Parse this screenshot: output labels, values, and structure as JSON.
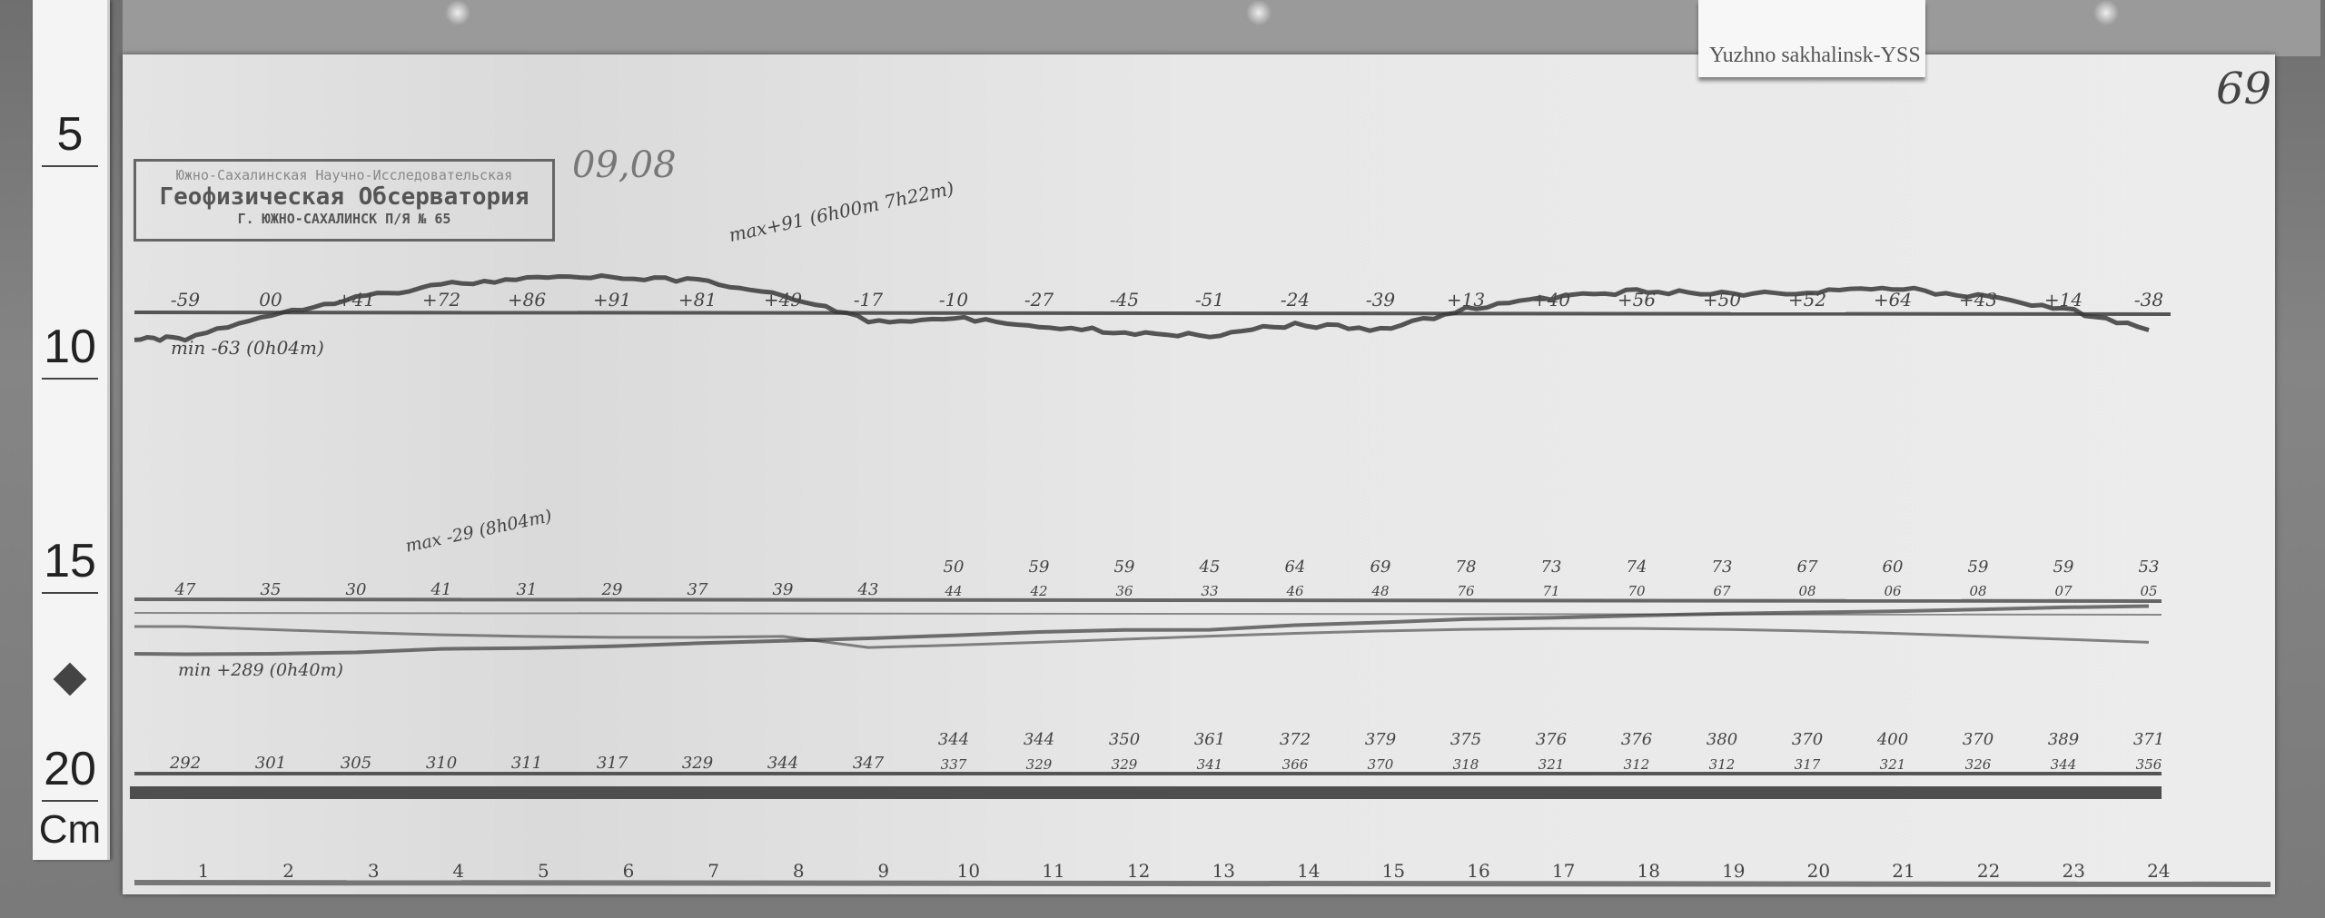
{
  "tag": {
    "label": "Yuzhno sakhalinsk-YSS"
  },
  "page_number": "69",
  "date": "09,08",
  "stamp": {
    "line1": "Южно-Сахалинская Научно-Исследовательская",
    "line2": "Геофизическая Обсерватория",
    "line3": "Г. ЮЖНО-САХАЛИНСК П/Я № 65"
  },
  "ruler": {
    "marks": [
      "5",
      "10",
      "15",
      "20"
    ],
    "unit": "Cm"
  },
  "annotations": {
    "top_max": "max+91 (6h00m 7h22m)",
    "top_min": "min -63 (0h04m)",
    "mid_max": "max -29 (8h04m)",
    "mid_min": "min +289 (0h40m)"
  },
  "chart_data": {
    "type": "line",
    "xlabel": "",
    "x_ticks": [
      "1",
      "2",
      "3",
      "4",
      "5",
      "6",
      "7",
      "8",
      "9",
      "10",
      "11",
      "12",
      "13",
      "14",
      "15",
      "16",
      "17",
      "18",
      "19",
      "20",
      "21",
      "22",
      "23",
      "24"
    ],
    "series": [
      {
        "hourly_labels": [
          "-59",
          "00",
          "+41",
          "+72",
          "+86",
          "+91",
          "+81",
          "+49",
          "-17",
          "-10",
          "-27",
          "-45",
          "-51",
          "-24",
          "-39",
          "+13",
          "+40",
          "+56",
          "+50",
          "+52",
          "+64",
          "+43",
          "+14",
          "-38"
        ],
        "values": [
          -59,
          0,
          41,
          72,
          86,
          91,
          81,
          49,
          -17,
          -10,
          -27,
          -45,
          -51,
          -24,
          -39,
          13,
          40,
          56,
          50,
          52,
          64,
          43,
          14,
          -38
        ],
        "start_value": -63
      },
      {
        "hourly_labels": [
          "47",
          "35",
          "30",
          "41",
          "31",
          "29",
          "37",
          "39",
          "43",
          "50",
          "59",
          "59",
          "45",
          "64",
          "69",
          "78",
          "73",
          "74",
          "73",
          "67",
          "60",
          "59",
          "59",
          "53"
        ],
        "secondary_labels": [
          "",
          "",
          "",
          "",
          "",
          "",
          "",
          "",
          "",
          "44",
          "42",
          "36",
          "33",
          "46",
          "48",
          "76",
          "71",
          "70",
          "67",
          "08",
          "06",
          "08",
          "07",
          "05"
        ],
        "values": [
          47,
          35,
          30,
          41,
          31,
          29,
          37,
          39,
          43,
          50,
          59,
          59,
          45,
          64,
          69,
          78,
          73,
          74,
          73,
          67,
          60,
          59,
          59,
          53
        ]
      },
      {
        "hourly_labels": [
          "292",
          "301",
          "305",
          "310",
          "311",
          "317",
          "329",
          "344",
          "347",
          "344",
          "344",
          "350",
          "361",
          "372",
          "379",
          "375",
          "376",
          "376",
          "380",
          "370",
          "400",
          "370",
          "389",
          "371"
        ],
        "secondary_labels": [
          "",
          "",
          "",
          "",
          "",
          "",
          "",
          "",
          "",
          "337",
          "329",
          "329",
          "341",
          "366",
          "370",
          "318",
          "321",
          "312",
          "312",
          "317",
          "321",
          "326",
          "344",
          "356"
        ],
        "values": [
          292,
          301,
          305,
          310,
          311,
          317,
          329,
          344,
          347,
          344,
          344,
          350,
          361,
          372,
          379,
          375,
          376,
          376,
          380,
          370,
          400,
          370,
          389,
          371
        ]
      }
    ],
    "colors": {
      "trace": "#3a3a3a",
      "paper": "#e6e6e6"
    }
  }
}
